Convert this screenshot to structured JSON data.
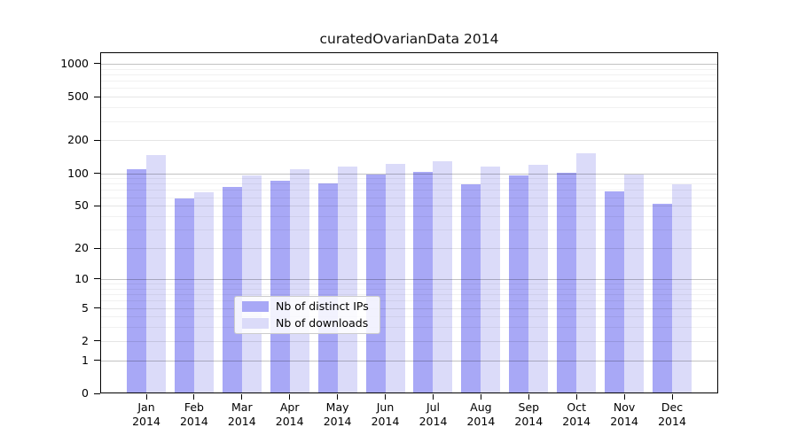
{
  "chart_data": {
    "type": "bar",
    "title": "curatedOvarianData 2014",
    "categories": [
      "Jan",
      "Feb",
      "Mar",
      "Apr",
      "May",
      "Jun",
      "Jul",
      "Aug",
      "Sep",
      "Oct",
      "Nov",
      "Dec"
    ],
    "category_year": "2014",
    "series": [
      {
        "name": "Nb of distinct IPs",
        "color": "#a8a8f6",
        "values": [
          107,
          57,
          73,
          84,
          79,
          96,
          101,
          78,
          93,
          100,
          67,
          51
        ]
      },
      {
        "name": "Nb of downloads",
        "color": "#dbdbf9",
        "values": [
          143,
          66,
          93,
          107,
          113,
          120,
          127,
          112,
          118,
          150,
          96,
          78
        ]
      }
    ],
    "yscale": "log10(1+value), zero shown at baseline",
    "yticks": [
      0,
      1,
      2,
      5,
      10,
      20,
      50,
      100,
      200,
      500,
      1000
    ],
    "ylim": [
      0,
      1300
    ],
    "grid": "horizontal log gridlines, majors at powers of 10, drawn over bars",
    "legend_position": "lower center"
  },
  "legend": {
    "border_color": "#cccccc"
  }
}
